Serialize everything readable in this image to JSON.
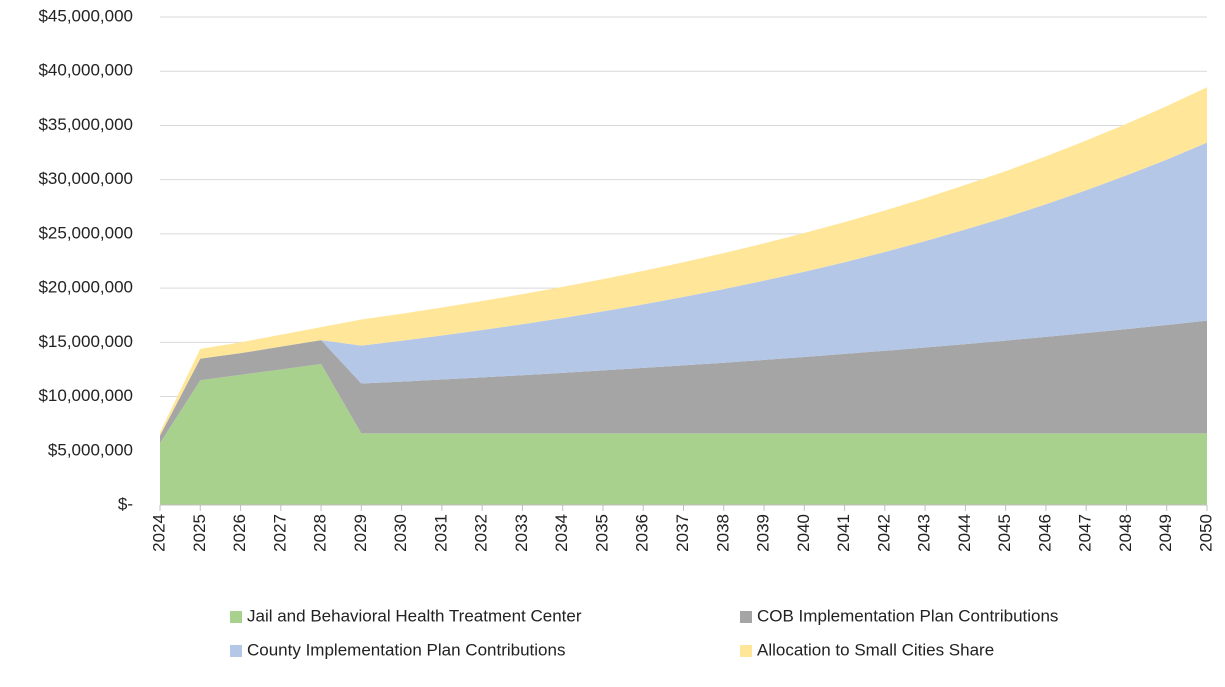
{
  "chart_data": {
    "type": "stacked_area",
    "categories": [
      "2024",
      "2025",
      "2026",
      "2027",
      "2028",
      "2029",
      "2030",
      "2031",
      "2032",
      "2033",
      "2034",
      "2035",
      "2036",
      "2037",
      "2038",
      "2039",
      "2040",
      "2041",
      "2042",
      "2043",
      "2044",
      "2045",
      "2046",
      "2047",
      "2048",
      "2049",
      "2050"
    ],
    "series": [
      {
        "name": "Jail and Behavioral Health Treatment Center",
        "color": "#a9d18e",
        "values": [
          5700000,
          11500000,
          12000000,
          12500000,
          13000000,
          6600000,
          6600000,
          6600000,
          6600000,
          6600000,
          6600000,
          6600000,
          6600000,
          6600000,
          6600000,
          6600000,
          6600000,
          6600000,
          6600000,
          6600000,
          6600000,
          6600000,
          6600000,
          6600000,
          6600000,
          6600000,
          6600000
        ]
      },
      {
        "name": "COB Implementation Plan Contributions",
        "color": "#a5a5a5",
        "values": [
          700000,
          2000000,
          2000000,
          2100000,
          2200000,
          4600000,
          4780000,
          4970000,
          5170000,
          5370000,
          5580000,
          5810000,
          6040000,
          6280000,
          6520000,
          6780000,
          7050000,
          7330000,
          7620000,
          7920000,
          8240000,
          8560000,
          8900000,
          9260000,
          9620000,
          10000000,
          10400000
        ]
      },
      {
        "name": "County Implementation Plan Contributions",
        "color": "#b4c7e7",
        "values": [
          0,
          0,
          0,
          0,
          0,
          3500000,
          3770000,
          4060000,
          4370000,
          4700000,
          5060000,
          5440000,
          5860000,
          6310000,
          6790000,
          7310000,
          7860000,
          8460000,
          9110000,
          9810000,
          10560000,
          11360000,
          12230000,
          13160000,
          14170000,
          15250000,
          16410000
        ]
      },
      {
        "name": "Allocation to Small Cities Share",
        "color": "#ffe699",
        "values": [
          300000,
          900000,
          1000000,
          1100000,
          1200000,
          2400000,
          2490000,
          2580000,
          2670000,
          2770000,
          2870000,
          2980000,
          3090000,
          3200000,
          3320000,
          3440000,
          3570000,
          3700000,
          3830000,
          3970000,
          4120000,
          4270000,
          4420000,
          4590000,
          4750000,
          4930000,
          5110000
        ]
      }
    ],
    "ylim": [
      0,
      45000000
    ],
    "yticks": [
      {
        "value": 0,
        "label": "$-"
      },
      {
        "value": 5000000,
        "label": "$5,000,000"
      },
      {
        "value": 10000000,
        "label": "$10,000,000"
      },
      {
        "value": 15000000,
        "label": "$15,000,000"
      },
      {
        "value": 20000000,
        "label": "$20,000,000"
      },
      {
        "value": 25000000,
        "label": "$25,000,000"
      },
      {
        "value": 30000000,
        "label": "$30,000,000"
      },
      {
        "value": 35000000,
        "label": "$35,000,000"
      },
      {
        "value": 40000000,
        "label": "$40,000,000"
      },
      {
        "value": 45000000,
        "label": "$45,000,000"
      }
    ],
    "grid": true,
    "legend": "bottom"
  }
}
